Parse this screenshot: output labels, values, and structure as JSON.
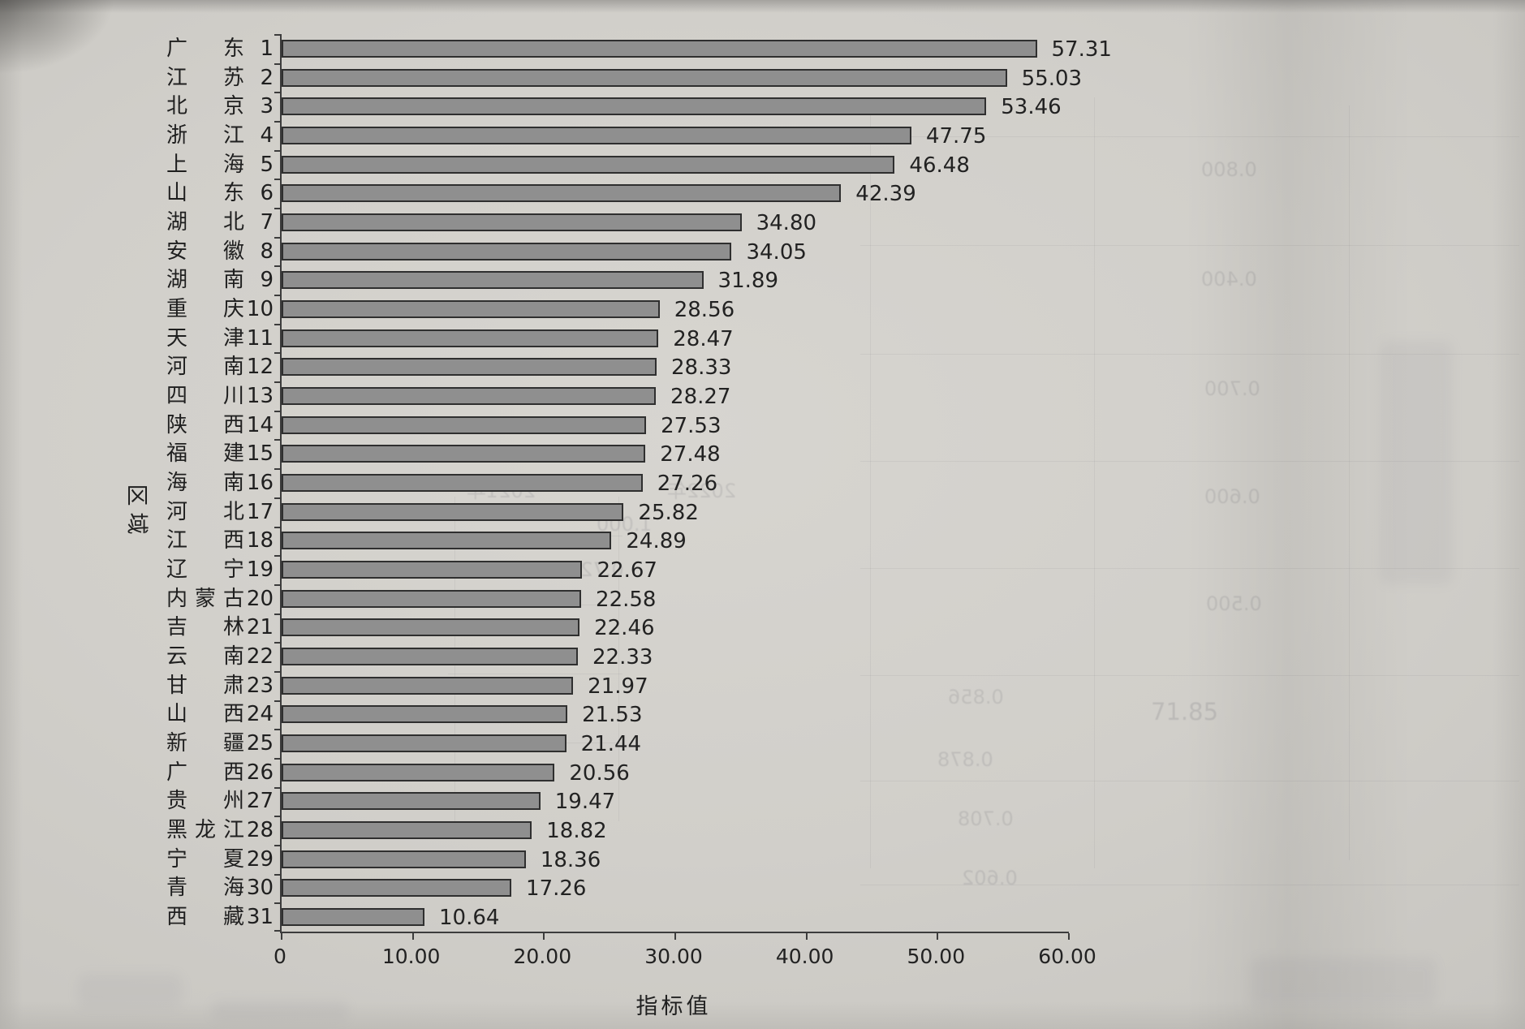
{
  "chart_data": {
    "type": "bar",
    "orientation": "horizontal",
    "title": "",
    "xlabel": "指标值",
    "ylabel": "区域",
    "xlim": [
      0,
      60
    ],
    "x_tick_labels": [
      "0",
      "10.00",
      "20.00",
      "30.00",
      "40.00",
      "50.00",
      "60.00"
    ],
    "grid": "off",
    "legend": "none",
    "rows": [
      {
        "rank": "1",
        "name": "广东",
        "value": "57.31"
      },
      {
        "rank": "2",
        "name": "江苏",
        "value": "55.03"
      },
      {
        "rank": "3",
        "name": "北京",
        "value": "53.46"
      },
      {
        "rank": "4",
        "name": "浙江",
        "value": "47.75"
      },
      {
        "rank": "5",
        "name": "上海",
        "value": "46.48"
      },
      {
        "rank": "6",
        "name": "山东",
        "value": "42.39"
      },
      {
        "rank": "7",
        "name": "湖北",
        "value": "34.80"
      },
      {
        "rank": "8",
        "name": "安徽",
        "value": "34.05"
      },
      {
        "rank": "9",
        "name": "湖南",
        "value": "31.89"
      },
      {
        "rank": "10",
        "name": "重庆",
        "value": "28.56"
      },
      {
        "rank": "11",
        "name": "天津",
        "value": "28.47"
      },
      {
        "rank": "12",
        "name": "河南",
        "value": "28.33"
      },
      {
        "rank": "13",
        "name": "四川",
        "value": "28.27"
      },
      {
        "rank": "14",
        "name": "陕西",
        "value": "27.53"
      },
      {
        "rank": "15",
        "name": "福建",
        "value": "27.48"
      },
      {
        "rank": "16",
        "name": "海南",
        "value": "27.26"
      },
      {
        "rank": "17",
        "name": "河北",
        "value": "25.82"
      },
      {
        "rank": "18",
        "name": "江西",
        "value": "24.89"
      },
      {
        "rank": "19",
        "name": "辽宁",
        "value": "22.67"
      },
      {
        "rank": "20",
        "name": "内蒙古",
        "value": "22.58"
      },
      {
        "rank": "21",
        "name": "吉林",
        "value": "22.46"
      },
      {
        "rank": "22",
        "name": "云南",
        "value": "22.33"
      },
      {
        "rank": "23",
        "name": "甘肃",
        "value": "21.97"
      },
      {
        "rank": "24",
        "name": "山西",
        "value": "21.53"
      },
      {
        "rank": "25",
        "name": "新疆",
        "value": "21.44"
      },
      {
        "rank": "26",
        "name": "广西",
        "value": "20.56"
      },
      {
        "rank": "27",
        "name": "贵州",
        "value": "19.47"
      },
      {
        "rank": "28",
        "name": "黑龙江",
        "value": "18.82"
      },
      {
        "rank": "29",
        "name": "宁夏",
        "value": "18.36"
      },
      {
        "rank": "30",
        "name": "青海",
        "value": "17.26"
      },
      {
        "rank": "31",
        "name": "西藏",
        "value": "10.64"
      }
    ],
    "bar_color": "#8f8f8f",
    "bar_border_color": "#2f2f2f",
    "paper_color": "#d2d0cb"
  },
  "bleedthrough": {
    "fragments": [
      "0.800",
      "0.400",
      "0.700",
      "0.600",
      "0.500",
      "0.856",
      "0.878",
      "0.708",
      "0.602",
      "1.000",
      "0.728",
      "2021年",
      "2022年",
      "71.85"
    ]
  }
}
